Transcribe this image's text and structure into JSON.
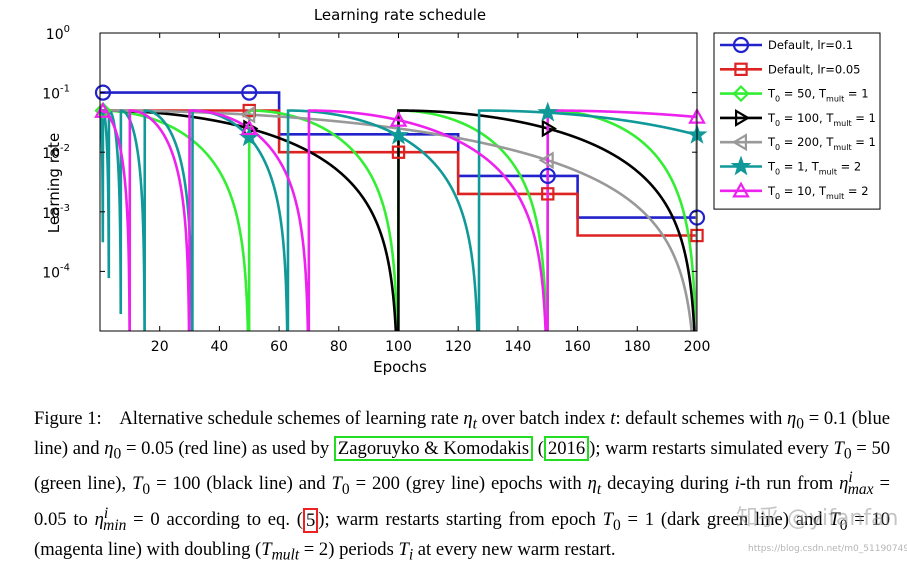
{
  "chart_data": {
    "type": "line",
    "title": "Learning rate schedule",
    "xlabel": "Epochs",
    "ylabel": "Learning rate",
    "xlim": [
      0,
      200
    ],
    "ylim_log10": [
      -5,
      0
    ],
    "yscale": "log",
    "x_ticks": [
      "20",
      "40",
      "60",
      "80",
      "100",
      "120",
      "140",
      "160",
      "180",
      "200"
    ],
    "y_ticks": [
      {
        "base": "10",
        "exp": "0",
        "value": 1
      },
      {
        "base": "10",
        "exp": "-1",
        "value": 0.1
      },
      {
        "base": "10",
        "exp": "-2",
        "value": 0.01
      },
      {
        "base": "10",
        "exp": "-3",
        "value": 0.001
      },
      {
        "base": "10",
        "exp": "-4",
        "value": 0.0001
      }
    ],
    "grid": false,
    "legend_position": "top-right",
    "series": [
      {
        "key": "default01",
        "label": "Default, lr=0.1",
        "kind": "step",
        "color": "#2222cc",
        "marker": "circle",
        "steps": [
          [
            0,
            60,
            0.1
          ],
          [
            60,
            120,
            0.02
          ],
          [
            120,
            160,
            0.004
          ],
          [
            160,
            200,
            0.0008
          ]
        ],
        "markers_x": [
          1,
          50,
          150,
          200
        ]
      },
      {
        "key": "default005",
        "label": "Default, lr=0.05",
        "kind": "step",
        "color": "#dd2222",
        "marker": "square",
        "steps": [
          [
            0,
            60,
            0.05
          ],
          [
            60,
            120,
            0.01
          ],
          [
            120,
            160,
            0.002
          ],
          [
            160,
            200,
            0.0004
          ]
        ],
        "markers_x": [
          50,
          100,
          150,
          200
        ]
      },
      {
        "key": "t50",
        "label_main": "T",
        "label_sub": "0",
        "label_mid": " = 50, T",
        "label_sub2": "mult",
        "label_tail": " = 1",
        "kind": "cosine",
        "color": "#33ee33",
        "marker": "diamond",
        "T0": 50,
        "Tmult": 1,
        "eta_max": 0.05,
        "markers_x": [
          1
        ]
      },
      {
        "key": "t100",
        "label_main": "T",
        "label_sub": "0",
        "label_mid": " = 100, T",
        "label_sub2": "mult",
        "label_tail": " = 1",
        "kind": "cosine",
        "color": "#000000",
        "marker": "triangle-right",
        "T0": 100,
        "Tmult": 1,
        "eta_max": 0.05,
        "markers_x": [
          50,
          150
        ]
      },
      {
        "key": "t200",
        "label_main": "T",
        "label_sub": "0",
        "label_mid": " = 200, T",
        "label_sub2": "mult",
        "label_tail": " = 1",
        "kind": "cosine",
        "color": "#999999",
        "marker": "triangle-left",
        "T0": 200,
        "Tmult": 1,
        "eta_max": 0.05,
        "markers_x": [
          50,
          150
        ]
      },
      {
        "key": "t1x2",
        "label_main": "T",
        "label_sub": "0",
        "label_mid": " = 1, T",
        "label_sub2": "mult",
        "label_tail": " = 2",
        "kind": "cosine",
        "color": "#119999",
        "marker": "star",
        "T0": 1,
        "Tmult": 2,
        "eta_max": 0.05,
        "markers_x": [
          50,
          100,
          150,
          200
        ]
      },
      {
        "key": "t10x2",
        "label_main": "T",
        "label_sub": "0",
        "label_mid": " = 10, T",
        "label_sub2": "mult",
        "label_tail": " = 2",
        "kind": "cosine",
        "color": "#ee22ee",
        "marker": "triangle-up",
        "T0": 10,
        "Tmult": 2,
        "eta_max": 0.05,
        "markers_x": [
          1,
          50,
          100,
          200
        ]
      }
    ]
  },
  "caption": {
    "fig_label": "Figure 1:",
    "l1": "Alternative schedule schemes of learning rate",
    "l1b": "over batch index",
    "l1c": ": default schemes",
    "l2a": "with",
    "l2b": "(blue line) and",
    "l2c": "(red line) as used by",
    "ref1": "Zagoruyko & Komodakis",
    "ref1_year": "2016",
    "l2d": ");",
    "l3a": "warm restarts simulated every",
    "l3b": "(green line),",
    "l3c": "(black line) and",
    "l3d": "(grey line)",
    "l4a": "epochs with",
    "l4b": "decaying during",
    "l4c": "-th run from",
    "l4d": "to",
    "l4e": "according to eq. (",
    "eq_ref": "5",
    "l4f": "); warm",
    "l5a": "restarts starting from epoch",
    "l5b": "(dark green line) and",
    "l5c": "(magenta line) with doubling",
    "l6a": "periods",
    "l6b": "at every new warm restart.",
    "m_eta_t": "η",
    "m_t": "t",
    "m_eta0_01": "= 0.1",
    "m_eta0_005": "= 0.05",
    "m_T0_50": "= 50",
    "m_T0_100": "= 100",
    "m_T0_200": "= 200",
    "m_max_val": "= 0.05",
    "m_min_val": "= 0",
    "m_T0_1": "= 1",
    "m_T0_10": "= 10",
    "m_tmult": "= 2)",
    "m_i": "i"
  },
  "watermark": "知乎 @yifanfan",
  "watermark_url": "https://blog.csdn.net/m0_51190749"
}
